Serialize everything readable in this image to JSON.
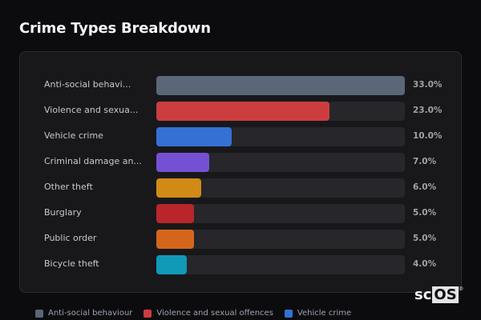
{
  "header": {
    "title": "Crime Types Breakdown"
  },
  "chart_data": {
    "type": "bar",
    "orientation": "horizontal",
    "title": "Crime Types Breakdown",
    "xlabel": "",
    "ylabel": "",
    "categories": [
      "Anti-social behavi...",
      "Violence and sexua...",
      "Vehicle crime",
      "Criminal damage an...",
      "Other theft",
      "Burglary",
      "Public order",
      "Bicycle theft"
    ],
    "values": [
      33.0,
      23.0,
      10.0,
      7.0,
      6.0,
      5.0,
      5.0,
      4.0
    ],
    "value_labels": [
      "33.0%",
      "23.0%",
      "10.0%",
      "7.0%",
      "6.0%",
      "5.0%",
      "5.0%",
      "4.0%"
    ],
    "colors": [
      "#5b6678",
      "#cc3d40",
      "#3571d4",
      "#7650d4",
      "#d18a16",
      "#b8262a",
      "#d4661c",
      "#1199b8"
    ],
    "scale_max": 33.0,
    "grid": false,
    "legend_position": "bottom",
    "legend": [
      {
        "label": "Anti-social behaviour",
        "color": "#5b6678"
      },
      {
        "label": "Violence and sexual offences",
        "color": "#cc3d40"
      },
      {
        "label": "Vehicle crime",
        "color": "#3571d4"
      }
    ]
  },
  "rows": [
    {
      "label": "Anti-social behavi...",
      "value": 33.0,
      "pct": "33.0%",
      "color": "#5b6678"
    },
    {
      "label": "Violence and sexua...",
      "value": 23.0,
      "pct": "23.0%",
      "color": "#cc3d40"
    },
    {
      "label": "Vehicle crime",
      "value": 10.0,
      "pct": "10.0%",
      "color": "#3571d4"
    },
    {
      "label": "Criminal damage an...",
      "value": 7.0,
      "pct": "7.0%",
      "color": "#7650d4"
    },
    {
      "label": "Other theft",
      "value": 6.0,
      "pct": "6.0%",
      "color": "#d18a16"
    },
    {
      "label": "Burglary",
      "value": 5.0,
      "pct": "5.0%",
      "color": "#b8262a"
    },
    {
      "label": "Public order",
      "value": 5.0,
      "pct": "5.0%",
      "color": "#d4661c"
    },
    {
      "label": "Bicycle theft",
      "value": 4.0,
      "pct": "4.0%",
      "color": "#1199b8"
    }
  ],
  "legend": [
    {
      "label": "Anti-social behaviour",
      "color": "#5b6678"
    },
    {
      "label": "Violence and sexual offences",
      "color": "#cc3d40"
    },
    {
      "label": "Vehicle crime",
      "color": "#3571d4"
    }
  ],
  "watermark": {
    "prefix": "sc",
    "boxed": "OS",
    "mark": "®"
  }
}
